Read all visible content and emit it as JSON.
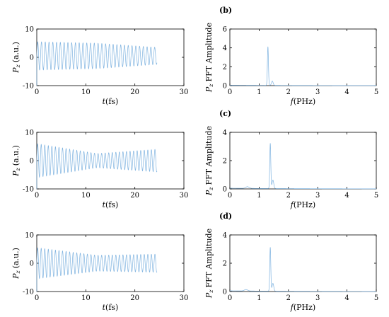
{
  "chart_data": [
    {
      "type": "line",
      "panel_label": "",
      "xlabel_var": "t",
      "xlabel_unit": "(fs)",
      "ylabel": "(a.u.)",
      "ylabel_var": "P",
      "ylabel_sub": "z",
      "xlim": [
        0,
        30
      ],
      "ylim": [
        -10,
        10
      ],
      "xticks": [
        0,
        10,
        20,
        30
      ],
      "yticks": [
        -10,
        0,
        10
      ],
      "color": "#7fb3e0",
      "signal": {
        "t_start": 0,
        "t_end": 24.5,
        "freq_PHz": 1.3,
        "amp_start": 5,
        "amp_mid": 4.5,
        "amp_end": 3,
        "offset": 0.5
      }
    },
    {
      "type": "line",
      "panel_label": "(b)",
      "xlabel_var": "f",
      "xlabel_unit": "(PHz)",
      "ylabel": "FFT Amplitude",
      "ylabel_var": "P",
      "ylabel_sub": "z",
      "xlim": [
        0,
        5
      ],
      "ylim": [
        0,
        6
      ],
      "xticks": [
        0,
        1,
        2,
        3,
        4,
        5
      ],
      "yticks": [
        0,
        2,
        4,
        6
      ],
      "color": "#7fb3e0",
      "peaks": [
        {
          "f": 1.3,
          "amp": 4.1,
          "width": 0.025
        },
        {
          "f": 1.45,
          "amp": 0.45,
          "width": 0.04
        }
      ],
      "baseline": 0.05
    },
    {
      "type": "line",
      "panel_label": "",
      "xlabel_var": "t",
      "xlabel_unit": "(fs)",
      "ylabel": "(a.u.)",
      "ylabel_var": "P",
      "ylabel_sub": "z",
      "xlim": [
        0,
        30
      ],
      "ylim": [
        -10,
        10
      ],
      "xticks": [
        0,
        10,
        20,
        30
      ],
      "yticks": [
        -10,
        0,
        10
      ],
      "color": "#7fb3e0",
      "signal": {
        "t_start": 0,
        "t_end": 24.5,
        "freq_PHz": 1.38,
        "amp_start": 6,
        "amp_mid": 2.5,
        "amp_end": 4,
        "offset": 0
      }
    },
    {
      "type": "line",
      "panel_label": "(c)",
      "xlabel_var": "f",
      "xlabel_unit": "(PHz)",
      "ylabel": "FFT Amplitude",
      "ylabel_var": "P",
      "ylabel_sub": "z",
      "xlim": [
        0,
        5
      ],
      "ylim": [
        0,
        4
      ],
      "xticks": [
        0,
        1,
        2,
        3,
        4,
        5
      ],
      "yticks": [
        0,
        2,
        4
      ],
      "color": "#7fb3e0",
      "peaks": [
        {
          "f": 1.38,
          "amp": 3.2,
          "width": 0.025
        },
        {
          "f": 1.47,
          "amp": 0.6,
          "width": 0.04
        },
        {
          "f": 0.6,
          "amp": 0.12,
          "width": 0.08
        }
      ],
      "baseline": 0.05
    },
    {
      "type": "line",
      "panel_label": "",
      "xlabel_var": "t",
      "xlabel_unit": "(fs)",
      "ylabel": "(a.u.)",
      "ylabel_var": "P",
      "ylabel_sub": "z",
      "xlim": [
        0,
        30
      ],
      "ylim": [
        -10,
        10
      ],
      "xticks": [
        0,
        10,
        20,
        30
      ],
      "yticks": [
        -10,
        0,
        10
      ],
      "color": "#7fb3e0",
      "signal": {
        "t_start": 0,
        "t_end": 24.5,
        "freq_PHz": 1.38,
        "amp_start": 5.5,
        "amp_mid": 2.8,
        "amp_end": 3.2,
        "offset": 0
      }
    },
    {
      "type": "line",
      "panel_label": "(d)",
      "xlabel_var": "f",
      "xlabel_unit": "(PHz)",
      "ylabel": "FFT Amplitude",
      "ylabel_var": "P",
      "ylabel_sub": "z",
      "xlim": [
        0,
        5
      ],
      "ylim": [
        0,
        4
      ],
      "xticks": [
        0,
        1,
        2,
        3,
        4,
        5
      ],
      "yticks": [
        0,
        2,
        4
      ],
      "color": "#7fb3e0",
      "peaks": [
        {
          "f": 1.38,
          "amp": 3.1,
          "width": 0.025
        },
        {
          "f": 1.47,
          "amp": 0.55,
          "width": 0.04
        },
        {
          "f": 0.55,
          "amp": 0.1,
          "width": 0.08
        }
      ],
      "baseline": 0.05
    }
  ]
}
